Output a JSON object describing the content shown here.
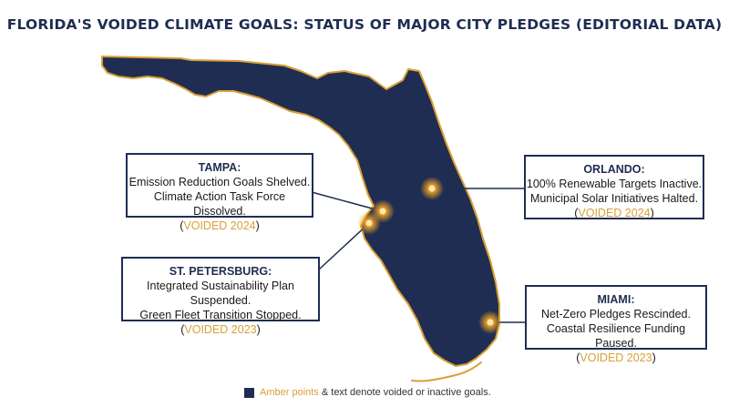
{
  "title": "FLORIDA'S VOIDED CLIMATE GOALS: STATUS OF MAJOR CITY PLEDGES (EDITORIAL DATA)",
  "colors": {
    "state_fill": "#1f2d52",
    "coast_outline": "#d9a036",
    "accent": "#d9a036",
    "text": "#1a1a1a"
  },
  "cities": [
    {
      "id": "tampa",
      "name": "TAMPA:",
      "lines": [
        "Emission Reduction Goals Shelved.",
        "Climate Action Task Force Dissolved."
      ],
      "status_open": "(",
      "status": "VOIDED 2024",
      "status_close": ")"
    },
    {
      "id": "st-petersburg",
      "name": "ST. PETERSBURG:",
      "lines": [
        "Integrated Sustainability Plan Suspended.",
        "Green Fleet Transition Stopped."
      ],
      "status_open": "(",
      "status": "VOIDED 2023",
      "status_close": ")"
    },
    {
      "id": "orlando",
      "name": "ORLANDO:",
      "lines": [
        "100% Renewable Targets Inactive.",
        "Municipal Solar Initiatives Halted."
      ],
      "status_open": "(",
      "status": "VOIDED 2024",
      "status_close": ")"
    },
    {
      "id": "miami",
      "name": "MIAMI:",
      "lines": [
        "Net-Zero Pledges Rescinded.",
        "Coastal Resilience Funding Paused."
      ],
      "status_open": "(",
      "status": "VOIDED 2023",
      "status_close": ")"
    }
  ],
  "legend": {
    "amber_text": "Amber points",
    "rest_text": " & text denote voided or inactive goals."
  }
}
